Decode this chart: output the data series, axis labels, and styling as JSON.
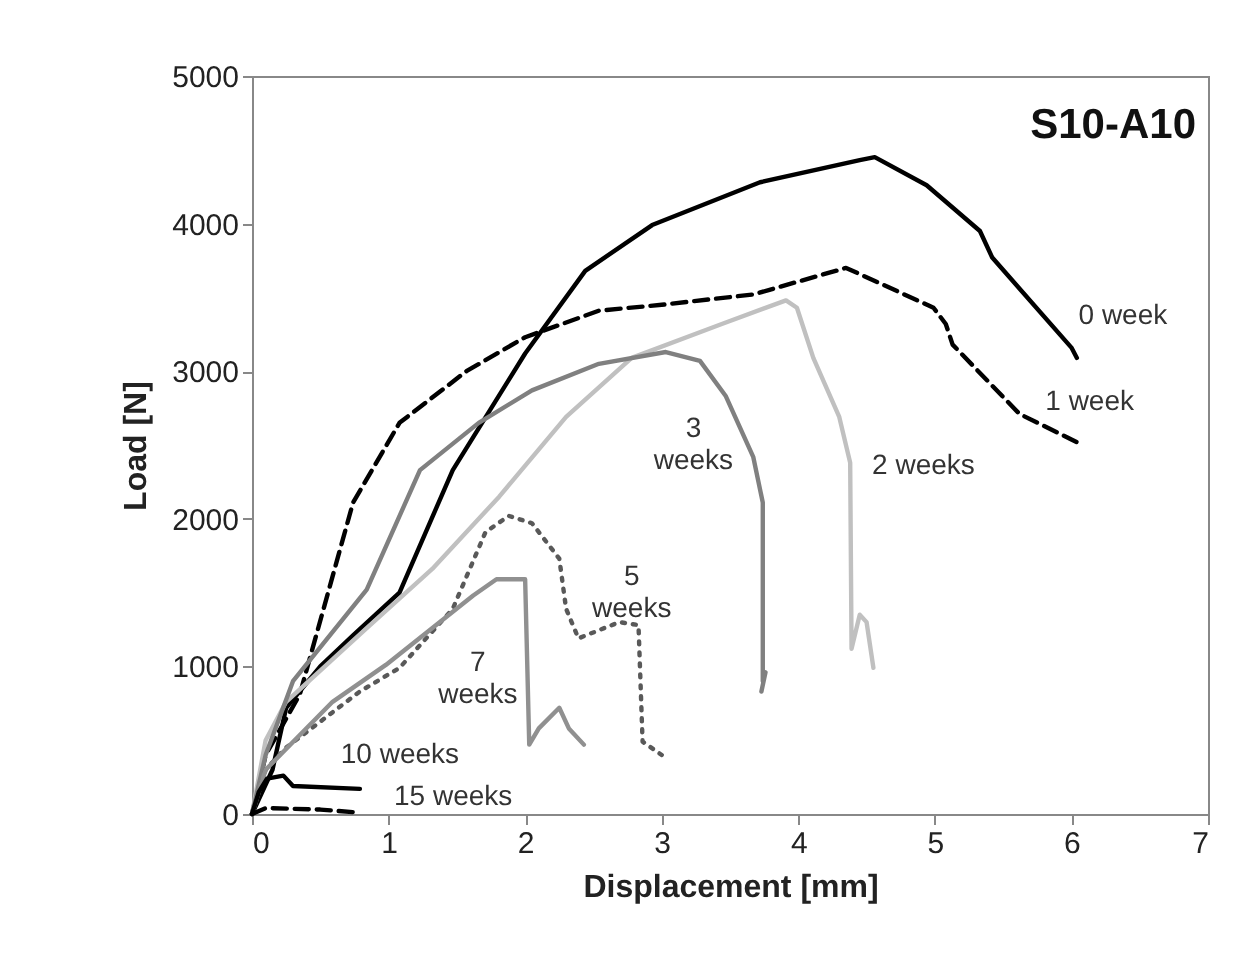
{
  "chart_data": {
    "type": "line",
    "title": "S10-A10",
    "xlabel": "Displacement [mm]",
    "ylabel": "Load [N]",
    "xlim": [
      0,
      7
    ],
    "xticks": [
      0,
      1,
      2,
      3,
      4,
      5,
      6,
      7
    ],
    "ylim": [
      0,
      5000
    ],
    "yticks": [
      0,
      1000,
      2000,
      3000,
      4000,
      5000
    ],
    "grid": false,
    "marker": "none",
    "series": [
      {
        "name": "0 week",
        "color": "#000000",
        "line_style": "solid",
        "x": [
          0,
          0.15,
          0.25,
          0.5,
          0.74,
          1.08,
          1.47,
          2.0,
          2.44,
          2.93,
          3.72,
          4.45,
          4.56,
          4.94,
          5.33,
          5.42,
          6.0,
          6.04
        ],
        "values": [
          0,
          300,
          720,
          1000,
          1210,
          1500,
          2330,
          3120,
          3680,
          3990,
          4280,
          4430,
          4450,
          4260,
          3950,
          3770,
          3160,
          3090
        ]
      },
      {
        "name": "1 week",
        "color": "#000000",
        "line_style": "dashed",
        "x": [
          0,
          0.1,
          0.35,
          0.74,
          1.08,
          1.57,
          2.0,
          2.54,
          3.0,
          3.67,
          4.35,
          4.99,
          5.08,
          5.13,
          5.62,
          6.06
        ],
        "values": [
          0,
          400,
          810,
          2110,
          2650,
          3000,
          3230,
          3410,
          3450,
          3520,
          3700,
          3430,
          3320,
          3180,
          2710,
          2510
        ]
      },
      {
        "name": "2 weeks",
        "color": "#c0c0c0",
        "line_style": "solid",
        "x": [
          0,
          0.1,
          0.25,
          0.84,
          1.32,
          1.81,
          2.3,
          2.78,
          3.44,
          3.91,
          3.99,
          4.11,
          4.3,
          4.38,
          4.39,
          4.45,
          4.5,
          4.55
        ],
        "values": [
          0,
          500,
          760,
          1260,
          1660,
          2150,
          2690,
          3090,
          3320,
          3480,
          3430,
          3090,
          2690,
          2380,
          1120,
          1350,
          1300,
          990
        ]
      },
      {
        "name": "3 weeks",
        "color": "#808080",
        "line_style": "solid",
        "x": [
          0,
          0.1,
          0.3,
          0.84,
          1.23,
          1.66,
          2.05,
          2.54,
          3.03,
          3.28,
          3.47,
          3.67,
          3.74,
          3.74,
          3.76,
          3.73
        ],
        "values": [
          0,
          400,
          900,
          1520,
          2330,
          2650,
          2870,
          3050,
          3130,
          3070,
          2830,
          2420,
          2110,
          900,
          960,
          830
        ]
      },
      {
        "name": "5 weeks",
        "color": "#595959",
        "line_style": "dotted",
        "x": [
          0,
          0.1,
          0.25,
          0.79,
          1.08,
          1.47,
          1.71,
          1.88,
          2.05,
          2.25,
          2.3,
          2.39,
          2.69,
          2.83,
          2.86,
          3.0
        ],
        "values": [
          0,
          300,
          450,
          830,
          990,
          1390,
          1910,
          2020,
          1970,
          1730,
          1390,
          1190,
          1300,
          1280,
          490,
          400
        ]
      },
      {
        "name": "7 weeks",
        "color": "#909090",
        "line_style": "solid",
        "x": [
          0,
          0.1,
          0.59,
          0.98,
          1.62,
          1.79,
          2.0,
          2.03,
          2.1,
          2.25,
          2.32,
          2.43
        ],
        "values": [
          0,
          300,
          760,
          1010,
          1480,
          1590,
          1590,
          470,
          580,
          720,
          580,
          470
        ]
      },
      {
        "name": "10 weeks",
        "color": "#000000",
        "line_style": "solid",
        "x": [
          0,
          0.05,
          0.11,
          0.23,
          0.3,
          0.79
        ],
        "values": [
          0,
          150,
          240,
          260,
          190,
          170
        ]
      },
      {
        "name": "15 weeks",
        "color": "#000000",
        "line_style": "dashed",
        "x": [
          0,
          0.1,
          0.5,
          0.77
        ],
        "values": [
          0,
          40,
          30,
          10
        ]
      }
    ]
  }
}
